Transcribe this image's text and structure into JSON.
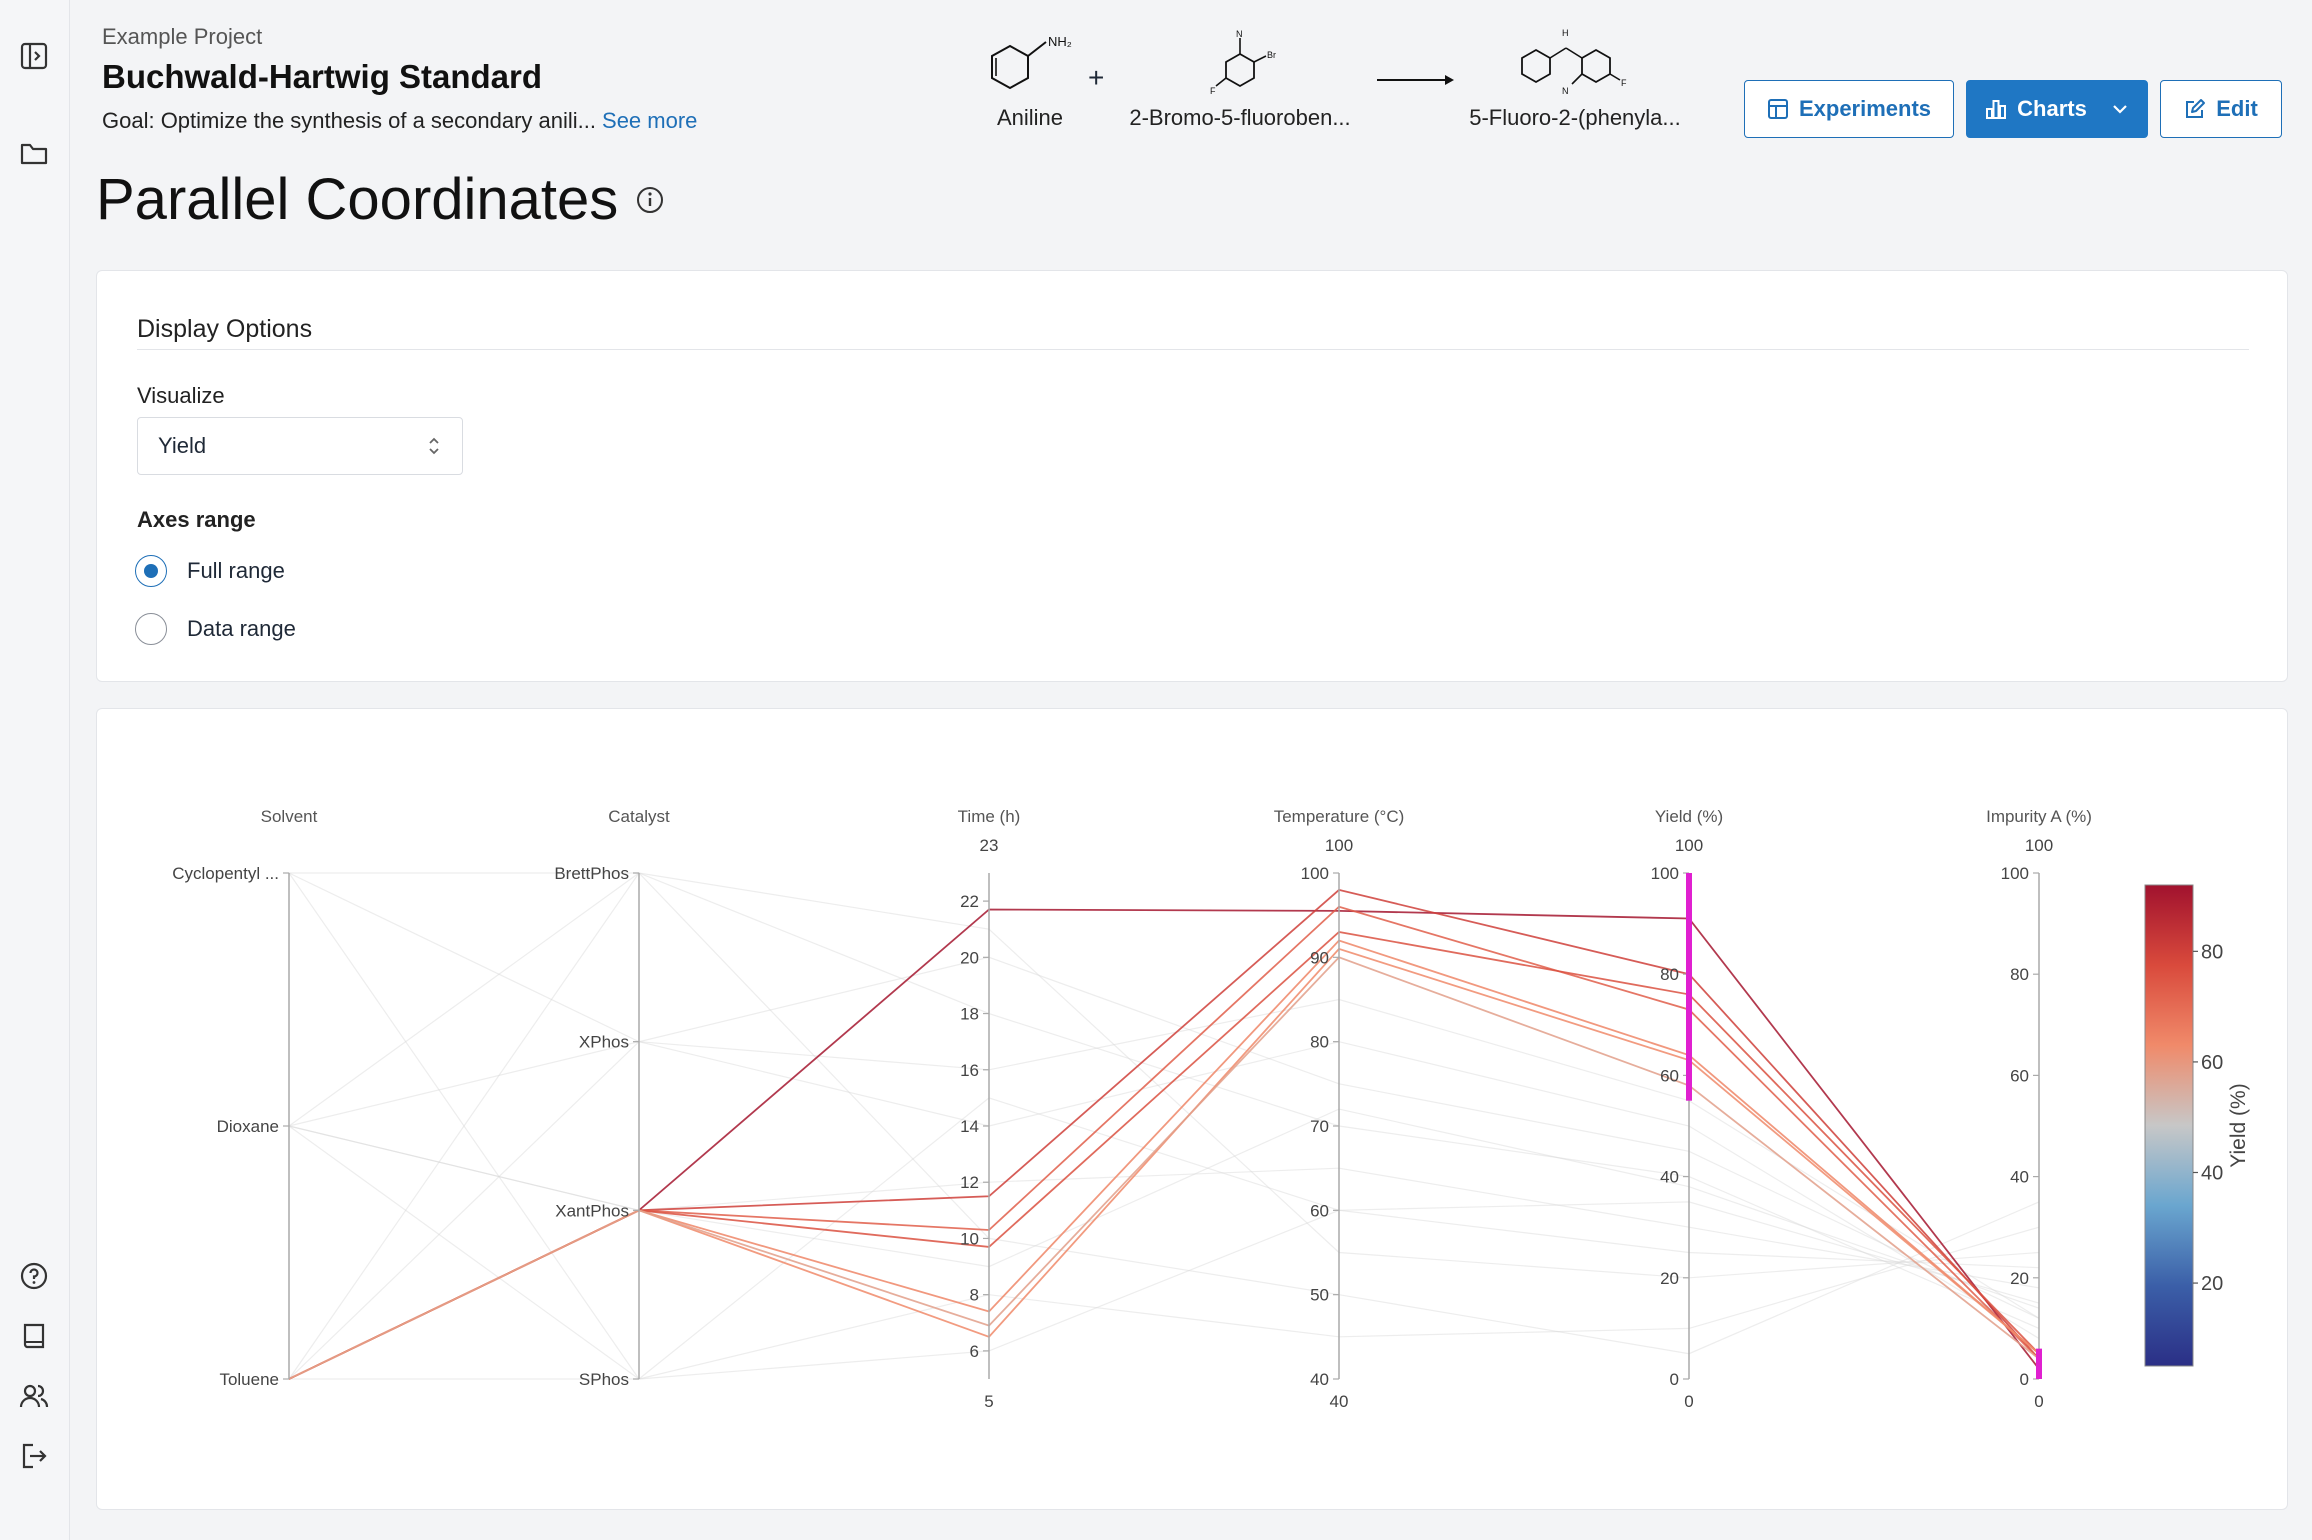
{
  "sidebar": {
    "icons": [
      "sidebar-toggle-icon",
      "folder-icon",
      "help-icon",
      "book-icon",
      "users-icon",
      "logout-icon"
    ]
  },
  "header": {
    "project": "Example Project",
    "title": "Buchwald-Hartwig Standard",
    "goal": "Goal: Optimize the synthesis of a secondary anili...",
    "see_more": "See more"
  },
  "reaction": {
    "reactant1": "Aniline",
    "reactant2": "2-Bromo-5-fluoroben...",
    "product": "5-Fluoro-2-(phenyla...",
    "plus": "+"
  },
  "buttons": {
    "experiments": "Experiments",
    "charts": "Charts",
    "edit": "Edit"
  },
  "page": {
    "title": "Parallel Coordinates"
  },
  "display_options": {
    "title": "Display Options",
    "visualize_label": "Visualize",
    "visualize_value": "Yield",
    "axes_range_label": "Axes range",
    "options": [
      "Full range",
      "Data range"
    ],
    "selected": "Full range"
  },
  "colors": {
    "accent": "#1f77c4",
    "selection": "#e020d0",
    "colorscale": [
      "#2b2f86",
      "#3b5fa8",
      "#6aa6cf",
      "#c7c7c7",
      "#f08a6a",
      "#d94a3c",
      "#a1122e"
    ]
  },
  "chart_data": {
    "type": "parallel_coordinates",
    "color_by": "Yield (%)",
    "colorbar": {
      "title": "Yield (%)",
      "ticks": [
        20,
        40,
        60,
        80
      ],
      "range": [
        5,
        92
      ]
    },
    "axes": [
      {
        "name": "Solvent",
        "kind": "categorical",
        "categories": [
          "Toluene",
          "Dioxane",
          "Cyclopentyl ..."
        ],
        "top_label": "",
        "bottom_label": ""
      },
      {
        "name": "Catalyst",
        "kind": "categorical",
        "categories": [
          "SPhos",
          "XantPhos",
          "XPhos",
          "BrettPhos"
        ],
        "top_label": "",
        "bottom_label": ""
      },
      {
        "name": "Time (h)",
        "kind": "numeric",
        "range": [
          5,
          23
        ],
        "ticks": [
          6,
          8,
          10,
          12,
          14,
          16,
          18,
          20,
          22
        ],
        "top_label": "23",
        "bottom_label": "5"
      },
      {
        "name": "Temperature (°C)",
        "kind": "numeric",
        "range": [
          40,
          100
        ],
        "ticks": [
          40,
          50,
          60,
          70,
          80,
          90,
          100
        ],
        "top_label": "100",
        "bottom_label": "40"
      },
      {
        "name": "Yield (%)",
        "kind": "numeric",
        "range": [
          0,
          100
        ],
        "ticks": [
          0,
          20,
          40,
          60,
          80,
          100
        ],
        "top_label": "100",
        "bottom_label": "0",
        "constraint": [
          55,
          100
        ]
      },
      {
        "name": "Impurity A (%)",
        "kind": "numeric",
        "range": [
          0,
          100
        ],
        "ticks": [
          0,
          20,
          40,
          60,
          80,
          100
        ],
        "top_label": "100",
        "bottom_label": "0",
        "constraint": [
          0,
          6
        ]
      }
    ],
    "experiments": [
      {
        "Solvent": "Toluene",
        "Catalyst": "XantPhos",
        "Time (h)": 21.7,
        "Temperature (°C)": 95.5,
        "Yield (%)": 91,
        "Impurity A (%)": 2
      },
      {
        "Solvent": "Toluene",
        "Catalyst": "XantPhos",
        "Time (h)": 11.5,
        "Temperature (°C)": 98,
        "Yield (%)": 80,
        "Impurity A (%)": 4
      },
      {
        "Solvent": "Toluene",
        "Catalyst": "XantPhos",
        "Time (h)": 10.3,
        "Temperature (°C)": 96,
        "Yield (%)": 73,
        "Impurity A (%)": 4
      },
      {
        "Solvent": "Toluene",
        "Catalyst": "XantPhos",
        "Time (h)": 9.7,
        "Temperature (°C)": 93,
        "Yield (%)": 76,
        "Impurity A (%)": 5
      },
      {
        "Solvent": "Toluene",
        "Catalyst": "XantPhos",
        "Time (h)": 7.4,
        "Temperature (°C)": 92,
        "Yield (%)": 64,
        "Impurity A (%)": 5
      },
      {
        "Solvent": "Toluene",
        "Catalyst": "XantPhos",
        "Time (h)": 6.5,
        "Temperature (°C)": 91,
        "Yield (%)": 63,
        "Impurity A (%)": 5
      },
      {
        "Solvent": "Toluene",
        "Catalyst": "XantPhos",
        "Time (h)": 6.9,
        "Temperature (°C)": 90,
        "Yield (%)": 58,
        "Impurity A (%)": 4
      },
      {
        "Solvent": "Cyclopentyl ...",
        "Catalyst": "XPhos",
        "Time (h)": 20,
        "Temperature (°C)": 75,
        "Yield (%)": 45,
        "Impurity A (%)": 12
      },
      {
        "Solvent": "Cyclopentyl ...",
        "Catalyst": "SPhos",
        "Time (h)": 15,
        "Temperature (°C)": 60,
        "Yield (%)": 35,
        "Impurity A (%)": 15
      },
      {
        "Solvent": "Dioxane",
        "Catalyst": "BrettPhos",
        "Time (h)": 21,
        "Temperature (°C)": 55,
        "Yield (%)": 20,
        "Impurity A (%)": 25
      },
      {
        "Solvent": "Dioxane",
        "Catalyst": "XantPhos",
        "Time (h)": 12,
        "Temperature (°C)": 65,
        "Yield (%)": 30,
        "Impurity A (%)": 18
      },
      {
        "Solvent": "Dioxane",
        "Catalyst": "SPhos",
        "Time (h)": 8,
        "Temperature (°C)": 45,
        "Yield (%)": 10,
        "Impurity A (%)": 30
      },
      {
        "Solvent": "Toluene",
        "Catalyst": "BrettPhos",
        "Time (h)": 18,
        "Temperature (°C)": 70,
        "Yield (%)": 40,
        "Impurity A (%)": 10
      },
      {
        "Solvent": "Toluene",
        "Catalyst": "XPhos",
        "Time (h)": 14,
        "Temperature (°C)": 80,
        "Yield (%)": 50,
        "Impurity A (%)": 8
      },
      {
        "Solvent": "Cyclopentyl ...",
        "Catalyst": "BrettPhos",
        "Time (h)": 10,
        "Temperature (°C)": 50,
        "Yield (%)": 5,
        "Impurity A (%)": 35
      },
      {
        "Solvent": "Dioxane",
        "Catalyst": "XPhos",
        "Time (h)": 16,
        "Temperature (°C)": 85,
        "Yield (%)": 55,
        "Impurity A (%)": 12
      },
      {
        "Solvent": "Toluene",
        "Catalyst": "SPhos",
        "Time (h)": 6,
        "Temperature (°C)": 60,
        "Yield (%)": 25,
        "Impurity A (%)": 22
      },
      {
        "Solvent": "Dioxane",
        "Catalyst": "XantPhos",
        "Time (h)": 9,
        "Temperature (°C)": 72,
        "Yield (%)": 38,
        "Impurity A (%)": 14
      }
    ]
  }
}
